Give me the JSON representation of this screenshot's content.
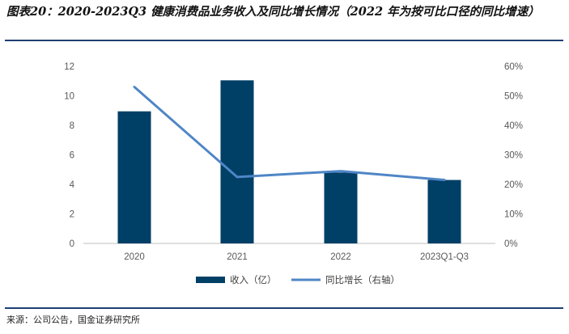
{
  "title": "图表20：2020-2023Q3 健康消费品业务收入及同比增长情况（2022 年为按可比口径的同比增速）",
  "source": "来源：公司公告，国金证券研究所",
  "colors": {
    "bar": "#003f66",
    "line": "#4f86c6",
    "rule": "#1f3f73"
  },
  "chart_data": {
    "type": "bar",
    "categories": [
      "2020",
      "2021",
      "2022",
      "2023Q1-Q3"
    ],
    "series": [
      {
        "name": "收入（亿）",
        "kind": "bar",
        "axis": "left",
        "values": [
          8.95,
          11.05,
          4.8,
          4.3
        ]
      },
      {
        "name": "同比增长（右轴）",
        "kind": "line",
        "axis": "right",
        "values": [
          53.0,
          22.5,
          24.5,
          21.5
        ]
      }
    ],
    "y_left": {
      "min": 0,
      "max": 12,
      "step": 2,
      "ticks": [
        "0",
        "2",
        "4",
        "6",
        "8",
        "10",
        "12"
      ]
    },
    "y_right": {
      "min": 0,
      "max": 60,
      "step": 10,
      "ticks": [
        "0%",
        "10%",
        "20%",
        "30%",
        "40%",
        "50%",
        "60%"
      ]
    },
    "legend": [
      "收入（亿）",
      "同比增长（右轴）"
    ],
    "legend_position": "bottom"
  }
}
